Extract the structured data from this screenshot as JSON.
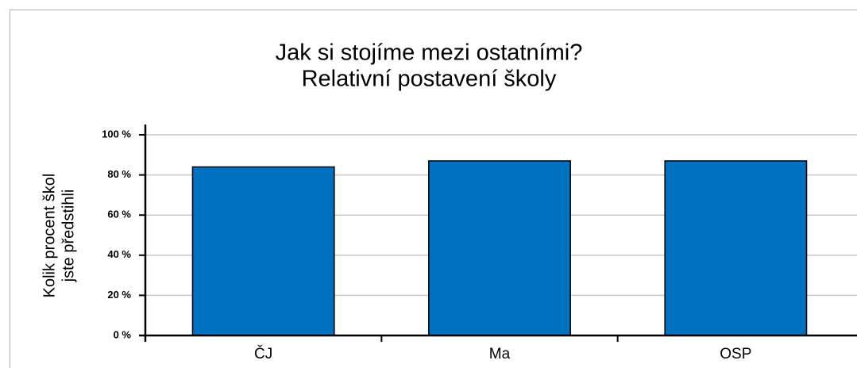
{
  "chart_data": {
    "type": "bar",
    "title": [
      "Jak si stojíme mezi ostatními?",
      "Relativní postavení školy"
    ],
    "y_label": [
      "Kolik procent škol",
      "jste předstihli"
    ],
    "categories": [
      "ČJ",
      "Ma",
      "OSP"
    ],
    "values": [
      84,
      87,
      87
    ],
    "color": "#0070c0",
    "ylim": [
      0,
      100
    ],
    "yticks": [
      {
        "value": 0,
        "label": "0 %"
      },
      {
        "value": 20,
        "label": "20 %"
      },
      {
        "value": 40,
        "label": "40 %"
      },
      {
        "value": 60,
        "label": "60 %"
      },
      {
        "value": 80,
        "label": "80 %"
      },
      {
        "value": 100,
        "label": "100 %"
      }
    ],
    "grid": true
  }
}
